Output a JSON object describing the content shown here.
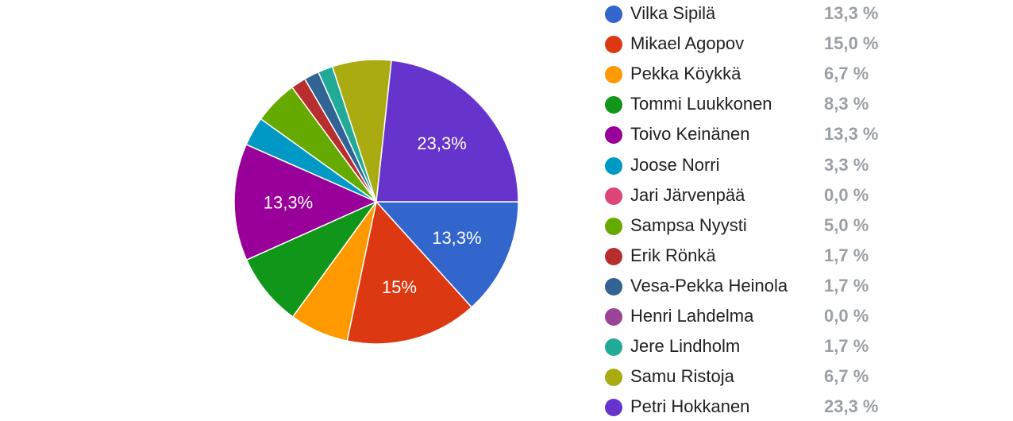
{
  "chart_data": {
    "type": "pie",
    "start_angle_deg": 0,
    "direction": "clockwise",
    "slices": [
      {
        "name": "Vilka Sipilä",
        "value": 13.3,
        "legend_value": "13,3 %",
        "slice_label": "13,3%",
        "color": "#3366cc"
      },
      {
        "name": "Mikael Agopov",
        "value": 15.0,
        "legend_value": "15,0 %",
        "slice_label": "15%",
        "color": "#dc3912"
      },
      {
        "name": "Pekka Köykkä",
        "value": 6.7,
        "legend_value": "6,7 %",
        "slice_label": "",
        "color": "#ff9900"
      },
      {
        "name": "Tommi Luukkonen",
        "value": 8.3,
        "legend_value": "8,3 %",
        "slice_label": "",
        "color": "#109618"
      },
      {
        "name": "Toivo Keinänen",
        "value": 13.3,
        "legend_value": "13,3 %",
        "slice_label": "13,3%",
        "color": "#990099"
      },
      {
        "name": "Joose Norri",
        "value": 3.3,
        "legend_value": "3,3 %",
        "slice_label": "",
        "color": "#0099c6"
      },
      {
        "name": "Jari Järvenpää",
        "value": 0.0,
        "legend_value": "0,0 %",
        "slice_label": "",
        "color": "#dd4477"
      },
      {
        "name": "Sampsa Nyysti",
        "value": 5.0,
        "legend_value": "5,0 %",
        "slice_label": "",
        "color": "#66aa00"
      },
      {
        "name": "Erik Rönkä",
        "value": 1.7,
        "legend_value": "1,7 %",
        "slice_label": "",
        "color": "#b82e2e"
      },
      {
        "name": "Vesa-Pekka Heinola",
        "value": 1.7,
        "legend_value": "1,7 %",
        "slice_label": "",
        "color": "#316395"
      },
      {
        "name": "Henri Lahdelma",
        "value": 0.0,
        "legend_value": "0,0 %",
        "slice_label": "",
        "color": "#994499"
      },
      {
        "name": "Jere Lindholm",
        "value": 1.7,
        "legend_value": "1,7 %",
        "slice_label": "",
        "color": "#22aa99"
      },
      {
        "name": "Samu Ristoja",
        "value": 6.7,
        "legend_value": "6,7 %",
        "slice_label": "",
        "color": "#aaaa11"
      },
      {
        "name": "Petri Hokkanen",
        "value": 23.3,
        "legend_value": "23,3 %",
        "slice_label": "23,3%",
        "color": "#6633cc"
      }
    ],
    "legend_position": "right"
  }
}
